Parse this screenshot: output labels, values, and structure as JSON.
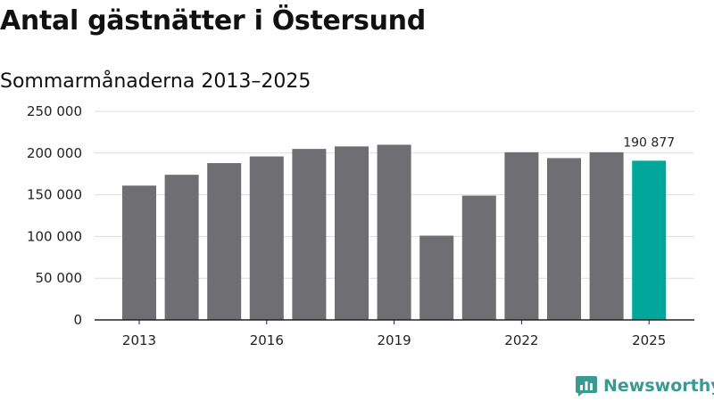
{
  "chart_data": {
    "type": "bar",
    "title": "Antal gästnätter i Östersund",
    "subtitle": "Sommarmånaderna 2013–2025",
    "categories": [
      "2013",
      "2014",
      "2015",
      "2016",
      "2017",
      "2018",
      "2019",
      "2020",
      "2021",
      "2022",
      "2023",
      "2024",
      "2025"
    ],
    "values": [
      161000,
      174000,
      188000,
      196000,
      205000,
      208000,
      210000,
      101000,
      149000,
      201000,
      194000,
      201000,
      190877
    ],
    "xticks": [
      "2013",
      "2016",
      "2019",
      "2022",
      "2025"
    ],
    "yticks": [
      "0",
      "50 000",
      "100 000",
      "150 000",
      "200 000",
      "250 000"
    ],
    "ylim": [
      0,
      250000
    ],
    "highlight_index": 12,
    "highlight_label": "190 877",
    "grid": true,
    "colors": {
      "bar": "#6f6e73",
      "highlight": "#00a79a",
      "grid": "#dddddd",
      "axis": "#222222"
    }
  },
  "brand": {
    "name": "Newsworthy",
    "icon": "bar-chart-bubble-icon",
    "color": "#3a9a93"
  }
}
